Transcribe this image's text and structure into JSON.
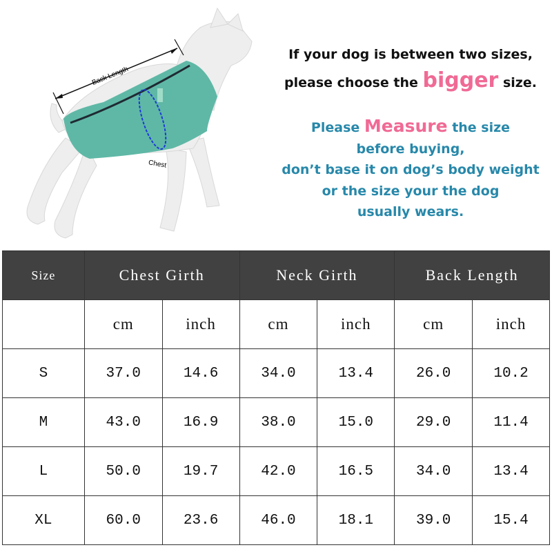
{
  "illustration": {
    "back_length_label": "Back Length",
    "chest_label": "Chest",
    "vest_color": "#5fb8a6"
  },
  "notes": {
    "line1": "If your dog is between two sizes,",
    "line2_pre": "please choose the",
    "line2_emph": "bigger",
    "line2_post": "size.",
    "line3_pre": "Please",
    "line3_emph": "Measure",
    "line3_post": "the size",
    "line4": "before buying,",
    "line5": "don’t base it on dog’s body weight",
    "line6": "or the size your the dog",
    "line7": "usually wears.",
    "colors": {
      "black": "#111111",
      "pink": "#f06a95",
      "teal": "#2788aa"
    }
  },
  "table": {
    "header_bg": "#414141",
    "headers": [
      "Size",
      "Chest Girth",
      "Neck Girth",
      "Back Length"
    ],
    "units": [
      "cm",
      "inch",
      "cm",
      "inch",
      "cm",
      "inch"
    ],
    "rows": [
      {
        "size": "S",
        "values": [
          "37.0",
          "14.6",
          "34.0",
          "13.4",
          "26.0",
          "10.2"
        ]
      },
      {
        "size": "M",
        "values": [
          "43.0",
          "16.9",
          "38.0",
          "15.0",
          "29.0",
          "11.4"
        ]
      },
      {
        "size": "L",
        "values": [
          "50.0",
          "19.7",
          "42.0",
          "16.5",
          "34.0",
          "13.4"
        ]
      },
      {
        "size": "XL",
        "values": [
          "60.0",
          "23.6",
          "46.0",
          "18.1",
          "39.0",
          "15.4"
        ]
      }
    ]
  }
}
